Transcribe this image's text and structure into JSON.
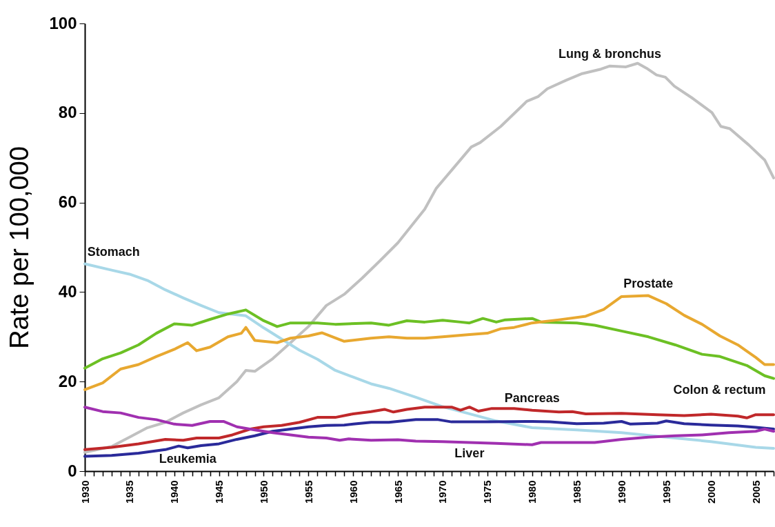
{
  "chart_data": {
    "type": "line",
    "ylabel": "Rate per 100,000",
    "xlim": [
      1930,
      2007
    ],
    "ylim": [
      0,
      100
    ],
    "yticks": [
      0,
      20,
      40,
      60,
      80,
      100
    ],
    "xticks": [
      1930,
      {
        "value": 1931,
        "label": null
      },
      {
        "value": 1932,
        "label": null
      },
      {
        "value": 1933,
        "label": null
      },
      {
        "value": 1934,
        "label": null
      },
      1935,
      {
        "value": 1936,
        "label": null
      },
      {
        "value": 1937,
        "label": null
      },
      {
        "value": 1938,
        "label": null
      },
      {
        "value": 1939,
        "label": null
      },
      1940,
      {
        "value": 1941,
        "label": null
      },
      {
        "value": 1942,
        "label": null
      },
      {
        "value": 1943,
        "label": null
      },
      {
        "value": 1944,
        "label": null
      },
      1945,
      {
        "value": 1946,
        "label": null
      },
      {
        "value": 1947,
        "label": null
      },
      {
        "value": 1948,
        "label": null
      },
      {
        "value": 1949,
        "label": null
      },
      1950,
      {
        "value": 1951,
        "label": null
      },
      {
        "value": 1952,
        "label": null
      },
      {
        "value": 1953,
        "label": null
      },
      {
        "value": 1954,
        "label": null
      },
      1955,
      {
        "value": 1956,
        "label": null
      },
      {
        "value": 1957,
        "label": null
      },
      {
        "value": 1958,
        "label": null
      },
      {
        "value": 1959,
        "label": null
      },
      1960,
      {
        "value": 1961,
        "label": null
      },
      {
        "value": 1962,
        "label": null
      },
      {
        "value": 1963,
        "label": null
      },
      {
        "value": 1964,
        "label": null
      },
      1965,
      {
        "value": 1966,
        "label": null
      },
      {
        "value": 1967,
        "label": null
      },
      {
        "value": 1968,
        "label": null
      },
      {
        "value": 1969,
        "label": null
      },
      1970,
      {
        "value": 1971,
        "label": null
      },
      {
        "value": 1972,
        "label": null
      },
      {
        "value": 1973,
        "label": null
      },
      {
        "value": 1974,
        "label": null
      },
      1975,
      {
        "value": 1976,
        "label": null
      },
      {
        "value": 1977,
        "label": null
      },
      {
        "value": 1978,
        "label": null
      },
      {
        "value": 1979,
        "label": null
      },
      1980,
      {
        "value": 1981,
        "label": null
      },
      {
        "value": 1982,
        "label": null
      },
      {
        "value": 1983,
        "label": null
      },
      {
        "value": 1984,
        "label": null
      },
      1985,
      {
        "value": 1986,
        "label": null
      },
      {
        "value": 1987,
        "label": null
      },
      {
        "value": 1988,
        "label": null
      },
      {
        "value": 1989,
        "label": null
      },
      1990,
      {
        "value": 1991,
        "label": null
      },
      {
        "value": 1992,
        "label": null
      },
      {
        "value": 1993,
        "label": null
      },
      {
        "value": 1994,
        "label": null
      },
      1995,
      {
        "value": 1996,
        "label": null
      },
      {
        "value": 1997,
        "label": null
      },
      {
        "value": 1998,
        "label": null
      },
      {
        "value": 1999,
        "label": null
      },
      2000,
      {
        "value": 2001,
        "label": null
      },
      {
        "value": 2002,
        "label": null
      },
      {
        "value": 2003,
        "label": null
      },
      {
        "value": 2004,
        "label": null
      },
      2005,
      {
        "value": 2006,
        "label": null
      },
      {
        "value": 2007,
        "label": null
      }
    ],
    "series": [
      {
        "name": "Lung & bronchus",
        "color": "#c0c0c0",
        "x": [
          1930,
          1933,
          1935,
          1937,
          1939,
          1941,
          1943,
          1945,
          1947,
          1948,
          1949,
          1951,
          1953,
          1955,
          1957,
          1959,
          1961,
          1963,
          1965,
          1968,
          1969.3,
          1971,
          1973.2,
          1974.2,
          1976.5,
          1979.4,
          1980.7,
          1981.7,
          1983.8,
          1985.6,
          1987.7,
          1988.7,
          1990.5,
          1991.8,
          1992.8,
          1993.9,
          1994.9,
          1995.9,
          1998,
          2000.1,
          2001.1,
          2002.1,
          2004.2,
          2006,
          2007
        ],
        "values": [
          4.2,
          5.5,
          7.6,
          9.7,
          10.9,
          13,
          14.8,
          16.4,
          20,
          22.5,
          22.3,
          25.1,
          28.7,
          32.3,
          37,
          39.5,
          43.1,
          47,
          51,
          58.5,
          63.2,
          67.2,
          72.4,
          73.4,
          77,
          82.6,
          83.7,
          85.4,
          87.3,
          88.8,
          89.8,
          90.5,
          90.3,
          91.1,
          90,
          88.5,
          88,
          86,
          83.2,
          80.1,
          77,
          76.5,
          72.9,
          69.5,
          65.5
        ]
      },
      {
        "name": "Stomach",
        "color": "#a8d8e8",
        "x": [
          1930,
          1933,
          1935,
          1937,
          1939,
          1941,
          1943,
          1945,
          1948,
          1950,
          1952,
          1954,
          1956,
          1958,
          1960,
          1962,
          1964,
          1967,
          1970,
          1973,
          1976,
          1980,
          1985,
          1990,
          1995,
          2000,
          2005,
          2007
        ],
        "values": [
          46.3,
          44.9,
          44,
          42.6,
          40.5,
          38.7,
          37,
          35.4,
          34.7,
          32,
          29.5,
          27,
          25,
          22.5,
          21,
          19.5,
          18.5,
          16.5,
          14.4,
          12.8,
          11.2,
          9.7,
          9.2,
          8.6,
          7.6,
          6.6,
          5.3,
          5.1
        ]
      },
      {
        "name": "Colon & rectum",
        "color": "#6cc024",
        "x": [
          1930,
          1932,
          1934,
          1936,
          1938,
          1940,
          1942,
          1944,
          1946,
          1948,
          1950,
          1951.5,
          1953,
          1956,
          1958,
          1962,
          1964,
          1966,
          1968,
          1970,
          1972,
          1973,
          1974.5,
          1976,
          1977,
          1980,
          1981,
          1985,
          1987,
          1990,
          1993,
          1996,
          1999,
          2001,
          2004,
          2006,
          2007
        ],
        "values": [
          23,
          25.1,
          26.4,
          28.2,
          30.8,
          32.9,
          32.6,
          33.9,
          35.1,
          36,
          33.6,
          32.3,
          33.1,
          33.1,
          32.8,
          33.1,
          32.6,
          33.6,
          33.3,
          33.7,
          33.3,
          33.1,
          34.1,
          33.3,
          33.8,
          34.1,
          33.3,
          33.1,
          32.6,
          31.3,
          30,
          28.2,
          26.1,
          25.6,
          23.6,
          21.3,
          20.7
        ]
      },
      {
        "name": "Prostate",
        "color": "#e8a830",
        "x": [
          1930,
          1932,
          1934,
          1936,
          1938,
          1940,
          1941.5,
          1942.5,
          1944,
          1946,
          1947.5,
          1948,
          1949,
          1951.5,
          1953,
          1955,
          1956.5,
          1959,
          1962,
          1964,
          1966,
          1968,
          1970,
          1973,
          1975,
          1976.5,
          1978,
          1980,
          1983,
          1986,
          1988,
          1990,
          1993,
          1995,
          1997,
          1999,
          2001,
          2003,
          2005,
          2006,
          2007
        ],
        "values": [
          18.2,
          19.7,
          22.8,
          23.8,
          25.6,
          27.2,
          28.7,
          26.9,
          27.7,
          30,
          30.8,
          32.1,
          29.2,
          28.7,
          29.7,
          30.2,
          30.9,
          29,
          29.7,
          30,
          29.7,
          29.7,
          30,
          30.5,
          30.8,
          31.8,
          32.1,
          33.1,
          33.8,
          34.6,
          36.1,
          39,
          39.2,
          37.4,
          34.8,
          32.8,
          30.2,
          28.2,
          25.4,
          23.8,
          23.8
        ]
      },
      {
        "name": "Pancreas",
        "color": "#c0282a",
        "x": [
          1930,
          1933,
          1936,
          1939,
          1941,
          1942.5,
          1945,
          1946.5,
          1948.5,
          1950,
          1952,
          1954,
          1956,
          1958,
          1960,
          1962,
          1963.5,
          1964.5,
          1966,
          1968,
          1971,
          1972,
          1973,
          1974,
          1975.5,
          1978,
          1980,
          1983,
          1984.5,
          1986,
          1990,
          1994,
          1997,
          2000,
          2003,
          2004,
          2005,
          2007
        ],
        "values": [
          4.8,
          5.3,
          6.1,
          7.1,
          6.9,
          7.4,
          7.4,
          8.1,
          9.4,
          9.9,
          10.2,
          10.9,
          12,
          12,
          12.8,
          13.3,
          13.8,
          13.2,
          13.8,
          14.3,
          14.3,
          13.6,
          14.3,
          13.4,
          14,
          14,
          13.6,
          13.2,
          13.3,
          12.8,
          12.9,
          12.6,
          12.4,
          12.7,
          12.3,
          11.9,
          12.6,
          12.6
        ]
      },
      {
        "name": "Leukemia",
        "color": "#2a2a9a",
        "x": [
          1930,
          1933,
          1936,
          1939,
          1940.5,
          1941.5,
          1943,
          1945,
          1947,
          1949,
          1951,
          1953,
          1955,
          1957,
          1959,
          1960,
          1962,
          1964,
          1967,
          1969.5,
          1971,
          1975,
          1980,
          1982,
          1985,
          1988,
          1990,
          1991,
          1994,
          1995,
          1997,
          2000,
          2003,
          2005,
          2007
        ],
        "values": [
          3.3,
          3.5,
          4,
          4.8,
          5.6,
          5.2,
          5.7,
          6.1,
          7.1,
          7.9,
          8.9,
          9.4,
          9.9,
          10.2,
          10.3,
          10.5,
          10.9,
          10.9,
          11.5,
          11.5,
          11,
          11,
          11.1,
          11,
          10.6,
          10.7,
          11.1,
          10.5,
          10.7,
          11.2,
          10.6,
          10.3,
          10.1,
          9.8,
          9.4
        ]
      },
      {
        "name": "Liver",
        "color": "#a030b0",
        "x": [
          1930,
          1932,
          1934,
          1936,
          1938,
          1940,
          1942,
          1944,
          1945.5,
          1947,
          1949,
          1951,
          1953,
          1955,
          1957,
          1958.5,
          1959.5,
          1962,
          1965,
          1967,
          1970,
          1973,
          1976,
          1980,
          1981,
          1985,
          1987,
          1990,
          1993,
          1996,
          1999,
          2002,
          2005,
          2006,
          2007
        ],
        "values": [
          14.3,
          13.3,
          13,
          12,
          11.5,
          10.5,
          10.2,
          11.1,
          11.1,
          9.9,
          9.2,
          8.6,
          8.1,
          7.6,
          7.4,
          6.9,
          7.2,
          6.9,
          7,
          6.7,
          6.6,
          6.4,
          6.2,
          5.9,
          6.4,
          6.4,
          6.4,
          7.1,
          7.6,
          7.9,
          8.1,
          8.6,
          8.9,
          9.4,
          8.9
        ]
      }
    ]
  }
}
